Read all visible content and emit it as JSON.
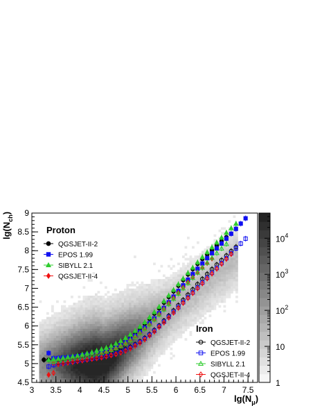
{
  "chart_data": {
    "type": "scatter",
    "xlabel_main": "lg(N",
    "xlabel_sub": "μ",
    "xlabel_close": ")",
    "ylabel_main": "lg(N",
    "ylabel_sub": "ch",
    "ylabel_close": ")",
    "xlim": [
      3.0,
      7.7
    ],
    "ylim": [
      4.5,
      9.0
    ],
    "xticks": [
      "3",
      "3.5",
      "4",
      "4.5",
      "5",
      "5.5",
      "6",
      "6.5",
      "7",
      "7.5"
    ],
    "yticks": [
      "4.5",
      "5",
      "5.5",
      "6",
      "6.5",
      "7",
      "7.5",
      "8",
      "8.5",
      "9"
    ],
    "colorbar": {
      "scale": "log",
      "range": [
        1,
        50000
      ],
      "ticks": [
        "1",
        "10",
        "10",
        "10",
        "10"
      ],
      "tick_exponents": [
        "",
        "",
        "2",
        "3",
        "4"
      ]
    },
    "legend_proton": {
      "title": "Proton",
      "entries": [
        {
          "label": "QGSJET-II-2",
          "color": "#000000",
          "marker": "filled-circle"
        },
        {
          "label": "EPOS 1.99",
          "color": "#1010f0",
          "marker": "filled-square"
        },
        {
          "label": "SIBYLL 2.1",
          "color": "#30cc30",
          "marker": "filled-triangle"
        },
        {
          "label": "QGSJET-II-4",
          "color": "#f01010",
          "marker": "filled-diamond"
        }
      ]
    },
    "legend_iron": {
      "title": "Iron",
      "entries": [
        {
          "label": "QGSJET-II-2",
          "color": "#000000",
          "marker": "open-circle"
        },
        {
          "label": "EPOS 1.99",
          "color": "#1010f0",
          "marker": "open-square"
        },
        {
          "label": "SIBYLL 2.1",
          "color": "#30cc30",
          "marker": "open-triangle"
        },
        {
          "label": "QGSJET-II-4",
          "color": "#f01010",
          "marker": "open-diamond"
        }
      ]
    },
    "series": [
      {
        "name": "Proton QGSJET-II-2",
        "color": "#000000",
        "marker": "filled-circle",
        "x": [
          3.25,
          3.35,
          3.45,
          3.55,
          3.65,
          3.75,
          3.85,
          3.95,
          4.05,
          4.15,
          4.25,
          4.35,
          4.45,
          4.55,
          4.65,
          4.75,
          4.85,
          4.95,
          5.05,
          5.15,
          5.25,
          5.35,
          5.45,
          5.55,
          5.65,
          5.75,
          5.85,
          5.95,
          6.05,
          6.15,
          6.25,
          6.35,
          6.45,
          6.55,
          6.65,
          6.75,
          6.85,
          6.95,
          7.05
        ],
        "y": [
          5.1,
          5.1,
          5.12,
          5.13,
          5.14,
          5.16,
          5.18,
          5.2,
          5.22,
          5.24,
          5.27,
          5.3,
          5.34,
          5.38,
          5.43,
          5.49,
          5.56,
          5.64,
          5.73,
          5.83,
          5.94,
          6.06,
          6.19,
          6.33,
          6.47,
          6.62,
          6.77,
          6.92,
          7.07,
          7.22,
          7.37,
          7.51,
          7.65,
          7.78,
          7.9,
          8.02,
          8.14,
          8.25,
          8.36
        ]
      },
      {
        "name": "Proton EPOS 1.99",
        "color": "#1010f0",
        "marker": "filled-square",
        "x": [
          3.35,
          3.45,
          3.55,
          3.65,
          3.75,
          3.85,
          3.95,
          4.05,
          4.15,
          4.25,
          4.35,
          4.45,
          4.55,
          4.65,
          4.75,
          4.85,
          4.95,
          5.05,
          5.15,
          5.25,
          5.35,
          5.45,
          5.55,
          5.65,
          5.75,
          5.85,
          5.95,
          6.05,
          6.15,
          6.25,
          6.35,
          6.45,
          6.55,
          6.65,
          6.75,
          6.85,
          6.95,
          7.05,
          7.15,
          7.25,
          7.35,
          7.45
        ],
        "y": [
          5.28,
          5.14,
          5.15,
          5.16,
          5.17,
          5.18,
          5.2,
          5.22,
          5.24,
          5.26,
          5.29,
          5.32,
          5.35,
          5.39,
          5.44,
          5.5,
          5.57,
          5.65,
          5.74,
          5.84,
          5.95,
          6.07,
          6.2,
          6.34,
          6.48,
          6.63,
          6.78,
          6.93,
          7.08,
          7.23,
          7.38,
          7.52,
          7.66,
          7.8,
          7.93,
          8.06,
          8.19,
          8.32,
          8.45,
          8.58,
          8.72,
          8.86
        ]
      },
      {
        "name": "Proton SIBYLL 2.1",
        "color": "#30cc30",
        "marker": "filled-triangle",
        "x": [
          3.35,
          3.45,
          3.55,
          3.65,
          3.75,
          3.85,
          3.95,
          4.05,
          4.15,
          4.25,
          4.35,
          4.45,
          4.55,
          4.65,
          4.75,
          4.85,
          4.95,
          5.05,
          5.15,
          5.25,
          5.35,
          5.45,
          5.55,
          5.65,
          5.75,
          5.85,
          5.95,
          6.05,
          6.15,
          6.25,
          6.35,
          6.45,
          6.55,
          6.65,
          6.75,
          6.85,
          6.95,
          7.05,
          7.15,
          7.25
        ],
        "y": [
          5.1,
          5.12,
          5.13,
          5.15,
          5.17,
          5.19,
          5.21,
          5.24,
          5.27,
          5.3,
          5.34,
          5.38,
          5.42,
          5.47,
          5.53,
          5.6,
          5.68,
          5.77,
          5.87,
          5.98,
          6.1,
          6.23,
          6.37,
          6.51,
          6.66,
          6.81,
          6.96,
          7.11,
          7.26,
          7.41,
          7.55,
          7.69,
          7.83,
          7.96,
          8.09,
          8.22,
          8.35,
          8.48,
          8.6,
          8.72
        ]
      },
      {
        "name": "Proton QGSJET-II-4",
        "color": "#f01010",
        "marker": "filled-diamond",
        "x": [
          3.35,
          3.45,
          3.55,
          3.65,
          3.75,
          3.85,
          3.95,
          4.05,
          4.15,
          4.25,
          4.35,
          4.45,
          4.55,
          4.65,
          4.75,
          4.85,
          4.95,
          5.05,
          5.15,
          5.25,
          5.35,
          5.45,
          5.55,
          5.65,
          5.75,
          5.85,
          5.95,
          6.05,
          6.15,
          6.25,
          6.35,
          6.45,
          6.55,
          6.65,
          6.75
        ],
        "y": [
          4.7,
          5.0,
          5.05,
          5.08,
          5.1,
          5.12,
          5.14,
          5.16,
          5.18,
          5.21,
          5.24,
          5.27,
          5.31,
          5.36,
          5.41,
          5.47,
          5.54,
          5.62,
          5.71,
          5.81,
          5.92,
          6.04,
          6.17,
          6.31,
          6.45,
          6.6,
          6.74,
          6.88,
          7.02,
          7.16,
          7.29,
          7.42,
          7.55,
          7.67,
          7.79
        ]
      },
      {
        "name": "Iron QGSJET-II-2",
        "color": "#000000",
        "marker": "open-circle",
        "x": [
          3.55,
          3.65,
          3.75,
          3.85,
          3.95,
          4.05,
          4.15,
          4.25,
          4.35,
          4.45,
          4.55,
          4.65,
          4.75,
          4.85,
          4.95,
          5.05,
          5.15,
          5.25,
          5.35,
          5.45,
          5.55,
          5.65,
          5.75,
          5.85,
          5.95,
          6.05,
          6.15,
          6.25,
          6.35,
          6.45,
          6.55,
          6.65,
          6.75,
          6.85,
          6.95,
          7.05,
          7.15,
          7.25
        ],
        "y": [
          5.02,
          5.04,
          5.06,
          5.08,
          5.1,
          5.12,
          5.14,
          5.16,
          5.18,
          5.2,
          5.23,
          5.26,
          5.29,
          5.33,
          5.38,
          5.44,
          5.51,
          5.59,
          5.68,
          5.78,
          5.89,
          6.01,
          6.14,
          6.27,
          6.41,
          6.55,
          6.69,
          6.83,
          6.97,
          7.11,
          7.25,
          7.38,
          7.51,
          7.63,
          7.75,
          7.87,
          7.99,
          8.1
        ]
      },
      {
        "name": "Iron EPOS 1.99",
        "color": "#1010f0",
        "marker": "open-square",
        "x": [
          3.35,
          3.45,
          3.55,
          3.65,
          3.75,
          3.85,
          3.95,
          4.05,
          4.15,
          4.25,
          4.35,
          4.45,
          4.55,
          4.65,
          4.75,
          4.85,
          4.95,
          5.05,
          5.15,
          5.25,
          5.35,
          5.45,
          5.55,
          5.65,
          5.75,
          5.85,
          5.95,
          6.05,
          6.15,
          6.25,
          6.35,
          6.45,
          6.55,
          6.65,
          6.75,
          6.85,
          6.95,
          7.05,
          7.15,
          7.25,
          7.35,
          7.45
        ],
        "y": [
          4.92,
          4.96,
          4.99,
          5.01,
          5.03,
          5.05,
          5.07,
          5.09,
          5.11,
          5.13,
          5.15,
          5.17,
          5.2,
          5.23,
          5.27,
          5.31,
          5.36,
          5.42,
          5.49,
          5.57,
          5.66,
          5.76,
          5.87,
          5.99,
          6.11,
          6.24,
          6.37,
          6.5,
          6.63,
          6.76,
          6.89,
          7.02,
          7.15,
          7.28,
          7.41,
          7.54,
          7.67,
          7.8,
          7.93,
          8.06,
          8.19,
          8.32
        ]
      },
      {
        "name": "Iron SIBYLL 2.1",
        "color": "#30cc30",
        "marker": "open-triangle",
        "x": [
          3.45,
          3.55,
          3.65,
          3.75,
          3.85,
          3.95,
          4.05,
          4.15,
          4.25,
          4.35,
          4.45,
          4.55,
          4.65,
          4.75,
          4.85,
          4.95,
          5.05,
          5.15,
          5.25,
          5.35,
          5.45,
          5.55,
          5.65,
          5.75,
          5.85,
          5.95,
          6.05,
          6.15,
          6.25,
          6.35,
          6.45,
          6.55,
          6.65,
          6.75,
          6.85,
          6.95,
          7.05
        ],
        "y": [
          5.05,
          5.07,
          5.09,
          5.11,
          5.13,
          5.15,
          5.17,
          5.19,
          5.22,
          5.25,
          5.28,
          5.32,
          5.36,
          5.41,
          5.47,
          5.54,
          5.62,
          5.71,
          5.81,
          5.92,
          6.04,
          6.17,
          6.3,
          6.44,
          6.58,
          6.72,
          6.86,
          7.0,
          7.14,
          7.28,
          7.42,
          7.55,
          7.68,
          7.81,
          7.94,
          8.06,
          8.18
        ]
      },
      {
        "name": "Iron QGSJET-II-4",
        "color": "#f01010",
        "marker": "open-diamond",
        "x": [
          3.45,
          3.55,
          3.65,
          3.75,
          3.85,
          3.95,
          4.05,
          4.15,
          4.25,
          4.35,
          4.45,
          4.55,
          4.65,
          4.75,
          4.85,
          4.95,
          5.05,
          5.15,
          5.25,
          5.35,
          5.45,
          5.55,
          5.65,
          5.75,
          5.85,
          5.95,
          6.05,
          6.15,
          6.25,
          6.35,
          6.45,
          6.55,
          6.65,
          6.75,
          6.85,
          6.95,
          7.05,
          7.15
        ],
        "y": [
          4.75,
          4.98,
          5.0,
          5.02,
          5.04,
          5.06,
          5.08,
          5.1,
          5.12,
          5.14,
          5.16,
          5.19,
          5.22,
          5.25,
          5.29,
          5.34,
          5.4,
          5.47,
          5.55,
          5.64,
          5.74,
          5.85,
          5.97,
          6.09,
          6.22,
          6.35,
          6.48,
          6.61,
          6.74,
          6.87,
          7.0,
          7.13,
          7.26,
          7.39,
          7.52,
          7.65,
          7.78,
          7.91
        ]
      }
    ]
  }
}
